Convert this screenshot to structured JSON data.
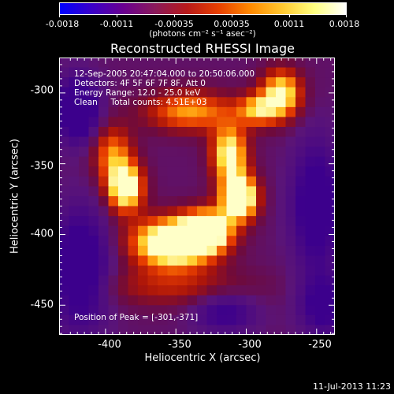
{
  "colorbar": {
    "colors": [
      "#0000ff",
      "#3a00c8",
      "#6a0090",
      "#8a1a5a",
      "#b81a1a",
      "#e84000",
      "#ff8a00",
      "#ffc830",
      "#ffff80",
      "#ffffff"
    ],
    "ticks": [
      "-0.0018",
      "-0.0011",
      "-0.00035",
      "0.00035",
      "0.0011",
      "0.0018"
    ],
    "unit": "(photons cm⁻² s⁻¹ asec⁻²)"
  },
  "chart_data": {
    "type": "heatmap",
    "title": "Reconstructed RHESSI Image",
    "xlabel": "Heliocentric X (arcsec)",
    "ylabel": "Heliocentric Y (arcsec)",
    "xlim": [
      -433,
      -237
    ],
    "ylim": [
      -471,
      -275
    ],
    "xticks": [
      "-400",
      "-350",
      "-300",
      "-250"
    ],
    "yticks": [
      "-300",
      "-350",
      "-400",
      "-450"
    ],
    "peak_position": [
      -301,
      -371
    ],
    "sources": [
      {
        "x": -352,
        "y": -406,
        "sx": 20,
        "sy": 12,
        "amp": 1.0
      },
      {
        "x": -328,
        "y": -397,
        "sx": 12,
        "sy": 10,
        "amp": 0.85
      },
      {
        "x": -305,
        "y": -374,
        "sx": 9,
        "sy": 11,
        "amp": 1.0
      },
      {
        "x": -386,
        "y": -367,
        "sx": 9,
        "sy": 12,
        "amp": 0.82
      },
      {
        "x": -395,
        "y": -343,
        "sx": 10,
        "sy": 14,
        "amp": 0.45
      },
      {
        "x": -312,
        "y": -343,
        "sx": 9,
        "sy": 14,
        "amp": 0.72
      },
      {
        "x": -275,
        "y": -301,
        "sx": 10,
        "sy": 12,
        "amp": 0.7
      },
      {
        "x": -340,
        "y": -313,
        "sx": 22,
        "sy": 10,
        "amp": 0.5
      },
      {
        "x": -292,
        "y": -312,
        "sx": 10,
        "sy": 8,
        "amp": 0.5
      },
      {
        "x": -352,
        "y": -437,
        "sx": 40,
        "sy": 10,
        "amp": 0.25
      },
      {
        "x": -420,
        "y": -312,
        "sx": 10,
        "sy": 15,
        "amp": -0.65
      },
      {
        "x": -418,
        "y": -425,
        "sx": 14,
        "sy": 28,
        "amp": -0.55
      },
      {
        "x": -250,
        "y": -380,
        "sx": 12,
        "sy": 30,
        "amp": -0.5
      },
      {
        "x": -245,
        "y": -450,
        "sx": 12,
        "sy": 15,
        "amp": -0.4
      },
      {
        "x": -315,
        "y": -455,
        "sx": 15,
        "sy": 10,
        "amp": -0.35
      }
    ],
    "annotations": {
      "time": "12-Sep-2005 20:47:04.000 to 20:50:06.000",
      "detectors": "Detectors: 4F 5F 6F 7F 8F, Att 0",
      "energy": "Energy Range: 12.0 - 25.0 keV",
      "method": "Clean     Total counts: 4.51E+03",
      "peak": "Position of Peak = [-301,-371]"
    }
  },
  "footer": {
    "date": "11-Jul-2013 11:23"
  }
}
